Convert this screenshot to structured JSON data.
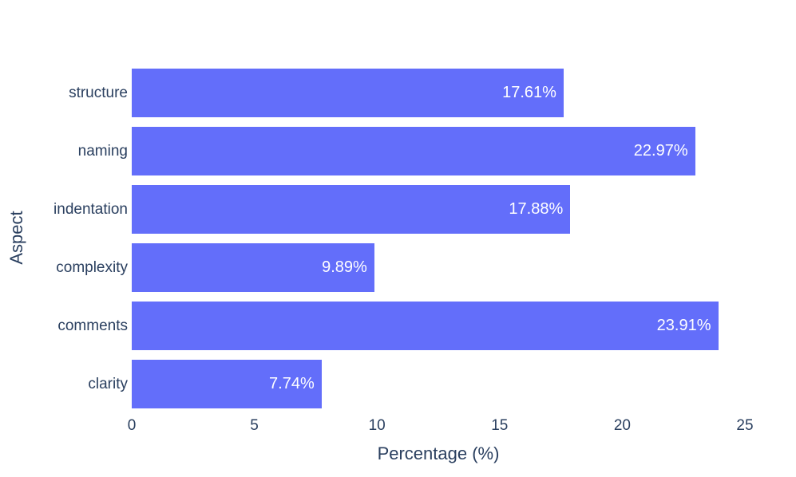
{
  "chart_data": {
    "type": "bar",
    "orientation": "horizontal",
    "title": "",
    "xlabel": "Percentage (%)",
    "ylabel": "Aspect",
    "categories": [
      "structure",
      "naming",
      "indentation",
      "complexity",
      "comments",
      "clarity"
    ],
    "values": [
      17.61,
      22.97,
      17.88,
      9.89,
      23.91,
      7.74
    ],
    "bar_labels": [
      "17.61%",
      "22.97%",
      "17.88%",
      "9.89%",
      "23.91%",
      "7.74%"
    ],
    "xlim": [
      0,
      25
    ],
    "xticks": [
      0,
      5,
      10,
      15,
      20,
      25
    ],
    "grid": false,
    "legend": false,
    "colors": {
      "bar": "#636efa",
      "bar_label_text": "#ffffff",
      "axis_text": "#2a3f5f",
      "background": "#ffffff"
    }
  }
}
